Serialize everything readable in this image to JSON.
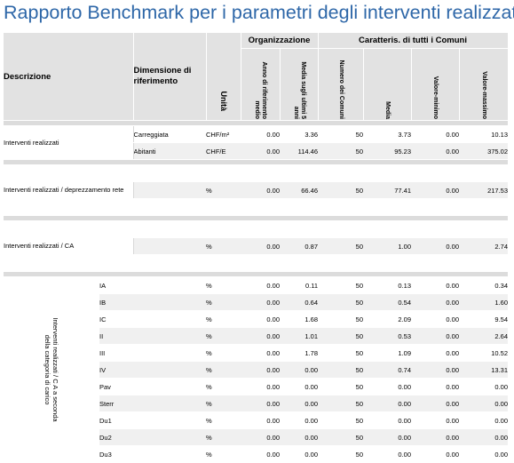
{
  "title": "Rapporto Benchmark per i parametri degli interventi realizzati",
  "header": {
    "descrizione": "Descrizione",
    "dimensione": "Dimensione di riferimento",
    "unita": "Unità",
    "group_org": "Organizzazione",
    "group_comuni": "Caratteris. di tutti i Comuni",
    "anno_rif": "Anno di riferimento medio",
    "media_5": "Media sugli ultimi 5 anni",
    "numero_comuni": "Numero dei Comuni",
    "media": "Media",
    "valore_min": "Valore-minimo",
    "valore_max": "Valore-massimo"
  },
  "sections": [
    {
      "desc": "Interventi realizzati",
      "rows": [
        {
          "dim": "Carreggiata",
          "unit": "CHF/m²",
          "anno": "0.00",
          "m5": "3.36",
          "n": "50",
          "media": "3.73",
          "min": "0.00",
          "max": "10.13"
        },
        {
          "dim": "Abitanti",
          "unit": "CHF/E",
          "anno": "0.00",
          "m5": "114.46",
          "n": "50",
          "media": "95.23",
          "min": "0.00",
          "max": "375.02"
        }
      ]
    },
    {
      "desc": "Interventi realizzati / deprezzamento rete",
      "rows": [
        {
          "dim": "",
          "unit": "%",
          "anno": "0.00",
          "m5": "66.46",
          "n": "50",
          "media": "77.41",
          "min": "0.00",
          "max": "217.53"
        }
      ]
    },
    {
      "desc": "Interventi realizzati / CA",
      "rows": [
        {
          "dim": "",
          "unit": "%",
          "anno": "0.00",
          "m5": "0.87",
          "n": "50",
          "media": "1.00",
          "min": "0.00",
          "max": "2.74"
        }
      ]
    },
    {
      "desc": "Interventi realizzati / C A a seconda della categoria di carico",
      "rows": [
        {
          "dim": "IA",
          "unit": "%",
          "anno": "0.00",
          "m5": "0.11",
          "n": "50",
          "media": "0.13",
          "min": "0.00",
          "max": "0.34"
        },
        {
          "dim": "IB",
          "unit": "%",
          "anno": "0.00",
          "m5": "0.64",
          "n": "50",
          "media": "0.54",
          "min": "0.00",
          "max": "1.60"
        },
        {
          "dim": "IC",
          "unit": "%",
          "anno": "0.00",
          "m5": "1.68",
          "n": "50",
          "media": "2.09",
          "min": "0.00",
          "max": "9.54"
        },
        {
          "dim": "II",
          "unit": "%",
          "anno": "0.00",
          "m5": "1.01",
          "n": "50",
          "media": "0.53",
          "min": "0.00",
          "max": "2.64"
        },
        {
          "dim": "III",
          "unit": "%",
          "anno": "0.00",
          "m5": "1.78",
          "n": "50",
          "media": "1.09",
          "min": "0.00",
          "max": "10.52"
        },
        {
          "dim": "IV",
          "unit": "%",
          "anno": "0.00",
          "m5": "0.00",
          "n": "50",
          "media": "0.74",
          "min": "0.00",
          "max": "13.31"
        },
        {
          "dim": "Pav",
          "unit": "%",
          "anno": "0.00",
          "m5": "0.00",
          "n": "50",
          "media": "0.00",
          "min": "0.00",
          "max": "0.00"
        },
        {
          "dim": "Sterr",
          "unit": "%",
          "anno": "0.00",
          "m5": "0.00",
          "n": "50",
          "media": "0.00",
          "min": "0.00",
          "max": "0.00"
        },
        {
          "dim": "Du1",
          "unit": "%",
          "anno": "0.00",
          "m5": "0.00",
          "n": "50",
          "media": "0.00",
          "min": "0.00",
          "max": "0.00"
        },
        {
          "dim": "Du2",
          "unit": "%",
          "anno": "0.00",
          "m5": "0.00",
          "n": "50",
          "media": "0.00",
          "min": "0.00",
          "max": "0.00"
        },
        {
          "dim": "Du3",
          "unit": "%",
          "anno": "0.00",
          "m5": "0.00",
          "n": "50",
          "media": "0.00",
          "min": "0.00",
          "max": "0.00"
        }
      ]
    }
  ]
}
